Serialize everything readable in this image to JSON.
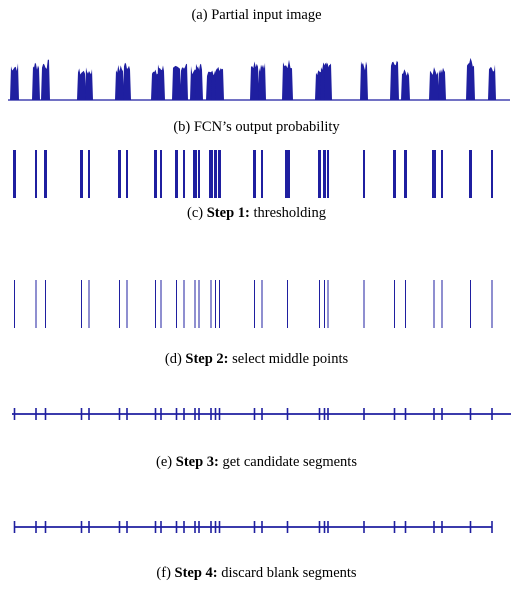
{
  "accent_color": "#1f1fa0",
  "figure": {
    "panels": [
      {
        "id": "a",
        "label": "(a)",
        "step": "",
        "text": "Partial input image"
      },
      {
        "id": "b",
        "label": "(b)",
        "step": "",
        "text": "FCN’s output probability"
      },
      {
        "id": "c",
        "label": "(c)",
        "step": "Step 1:",
        "text": "thresholding"
      },
      {
        "id": "d",
        "label": "(d)",
        "step": "Step 2:",
        "text": "select middle points"
      },
      {
        "id": "e",
        "label": "(e)",
        "step": "Step 3:",
        "text": "get candidate segments"
      },
      {
        "id": "f",
        "label": "(f)",
        "step": "Step 4:",
        "text": "discard blank segments"
      }
    ]
  }
}
